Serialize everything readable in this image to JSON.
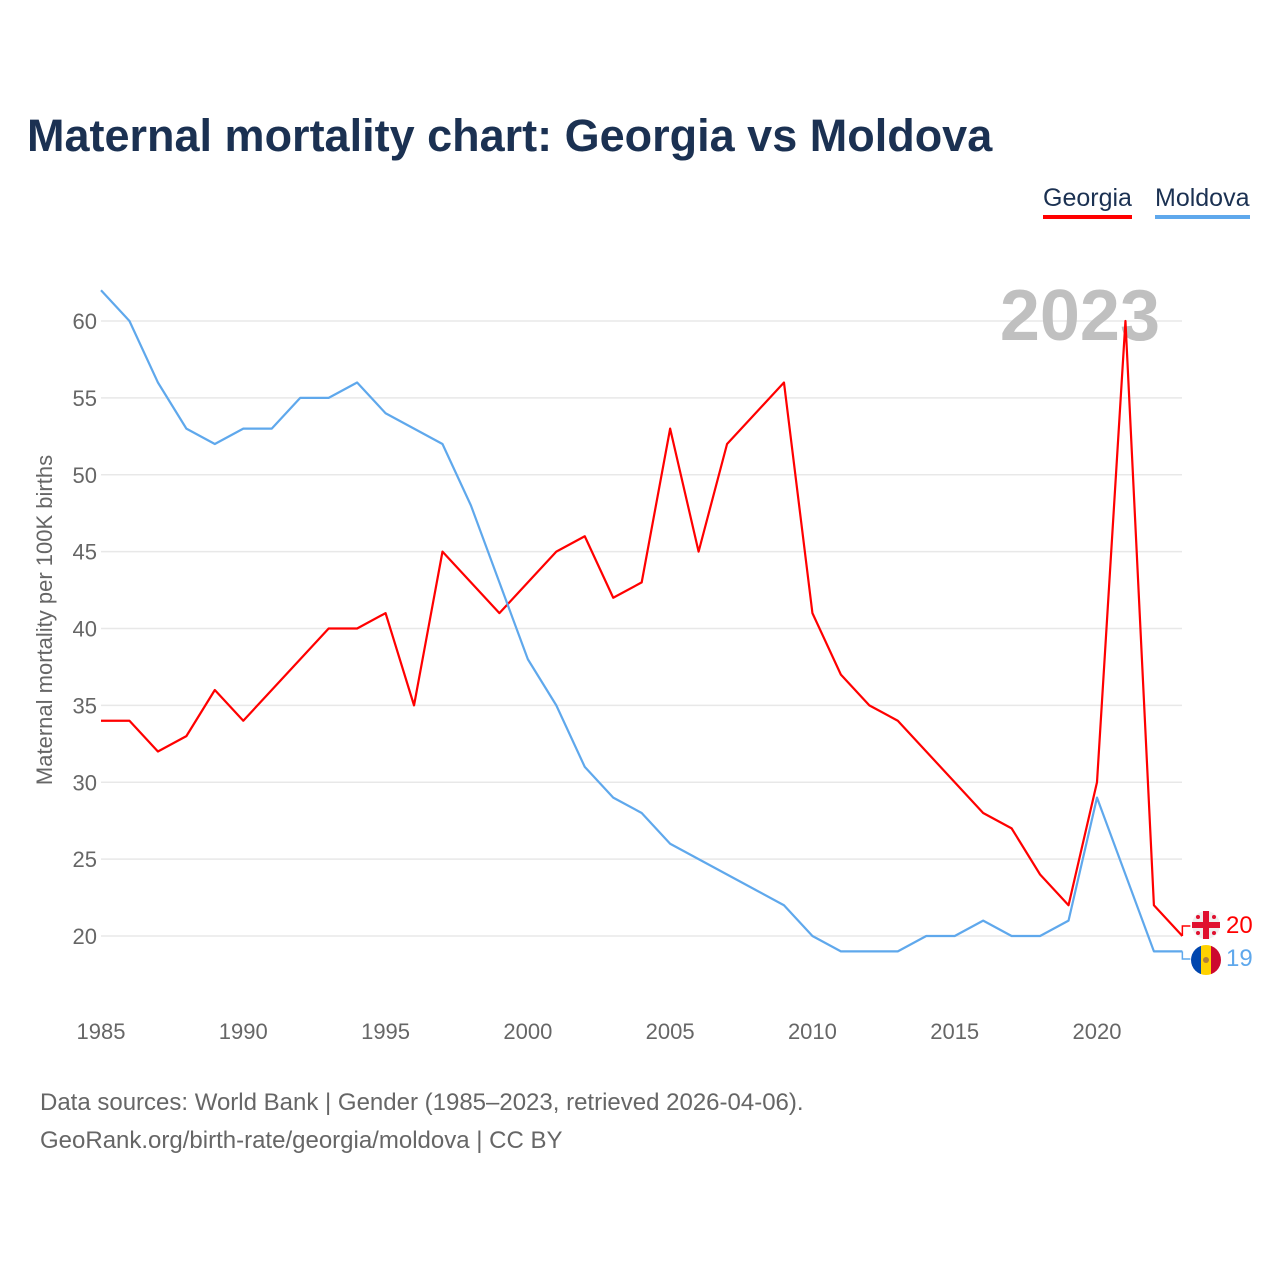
{
  "title": "Maternal mortality chart: Georgia vs Moldova",
  "year_badge": "2023",
  "footer": {
    "line1": "Data sources: World Bank | Gender (1985–2023, retrieved 2026-04-06).",
    "line2": "GeoRank.org/birth-rate/georgia/moldova | CC BY"
  },
  "chart_data": {
    "type": "line",
    "title": "Maternal mortality chart: Georgia vs Moldova",
    "xlabel": "",
    "ylabel": "Maternal mortality per 100K births",
    "xlim": [
      1985,
      2023
    ],
    "ylim": [
      16,
      63
    ],
    "grid": true,
    "legend_position": "top-right",
    "x_ticks": [
      "1985",
      "1990",
      "1995",
      "2000",
      "2005",
      "2010",
      "2015",
      "2020"
    ],
    "y_ticks": [
      "20",
      "25",
      "30",
      "35",
      "40",
      "45",
      "50",
      "55",
      "60"
    ],
    "x": [
      1985,
      1986,
      1987,
      1988,
      1989,
      1990,
      1991,
      1992,
      1993,
      1994,
      1995,
      1996,
      1997,
      1998,
      1999,
      2000,
      2001,
      2002,
      2003,
      2004,
      2005,
      2006,
      2007,
      2008,
      2009,
      2010,
      2011,
      2012,
      2013,
      2014,
      2015,
      2016,
      2017,
      2018,
      2019,
      2020,
      2021,
      2022,
      2023
    ],
    "series": [
      {
        "name": "Georgia",
        "color": "#ff0000",
        "end_label": "20",
        "values": [
          34,
          34,
          32,
          33,
          36,
          34,
          36,
          38,
          40,
          40,
          41,
          35,
          45,
          43,
          41,
          43,
          45,
          46,
          42,
          43,
          53,
          45,
          52,
          54,
          56,
          41,
          37,
          35,
          34,
          32,
          30,
          28,
          27,
          24,
          22,
          30,
          60,
          22,
          20
        ]
      },
      {
        "name": "Moldova",
        "color": "#5fa8ec",
        "end_label": "19",
        "values": [
          62,
          60,
          56,
          53,
          52,
          53,
          53,
          55,
          55,
          56,
          54,
          53,
          52,
          48,
          43,
          38,
          35,
          31,
          29,
          28,
          26,
          25,
          24,
          23,
          22,
          20,
          19,
          19,
          19,
          20,
          20,
          21,
          20,
          20,
          21,
          29,
          24,
          19,
          19
        ]
      }
    ]
  }
}
